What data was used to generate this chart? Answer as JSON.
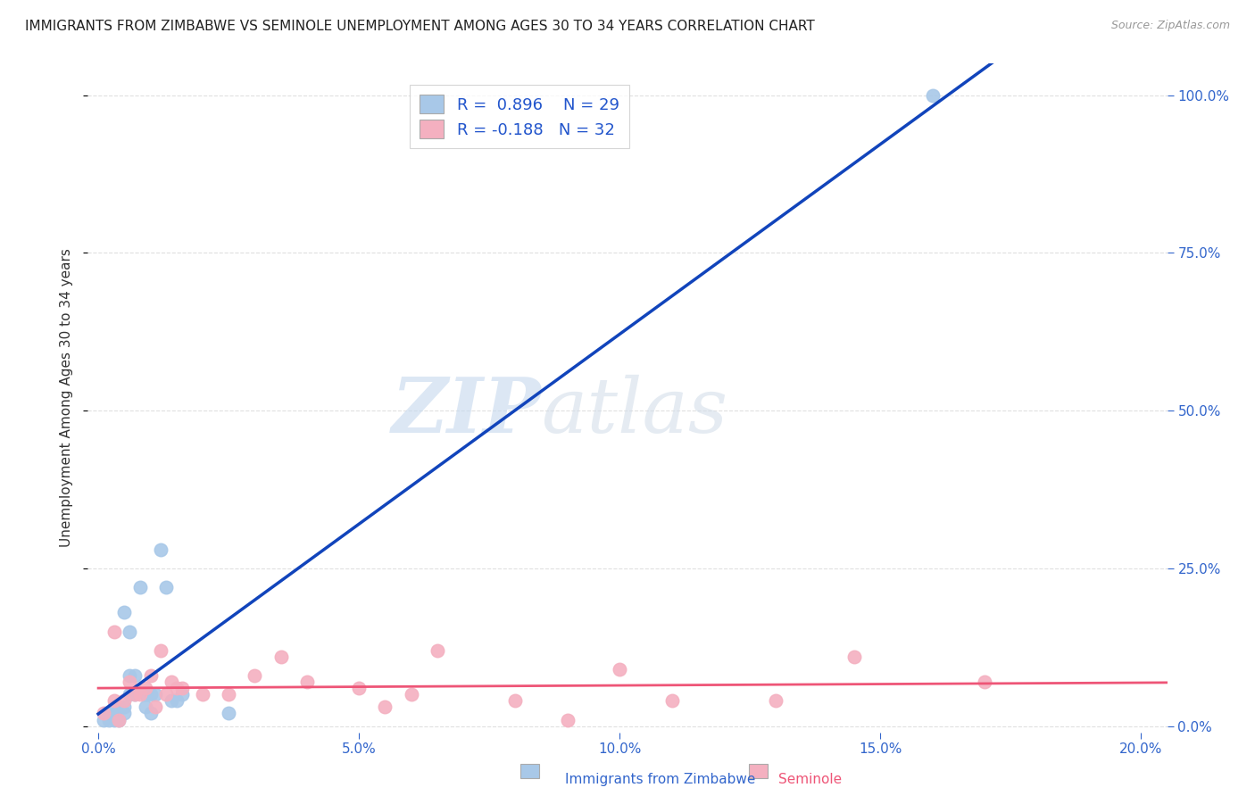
{
  "title": "IMMIGRANTS FROM ZIMBABWE VS SEMINOLE UNEMPLOYMENT AMONG AGES 30 TO 34 YEARS CORRELATION CHART",
  "source": "Source: ZipAtlas.com",
  "ylabel_label": "Unemployment Among Ages 30 to 34 years",
  "x_tick_labels": [
    "0.0%",
    "5.0%",
    "10.0%",
    "15.0%",
    "20.0%"
  ],
  "x_tick_vals": [
    0.0,
    0.05,
    0.1,
    0.15,
    0.2
  ],
  "y_tick_labels": [
    "0.0%",
    "25.0%",
    "50.0%",
    "75.0%",
    "100.0%"
  ],
  "y_tick_vals": [
    0.0,
    0.25,
    0.5,
    0.75,
    1.0
  ],
  "xlim": [
    -0.002,
    0.205
  ],
  "ylim": [
    -0.01,
    1.05
  ],
  "blue_R": "0.896",
  "blue_N": "29",
  "pink_R": "-0.188",
  "pink_N": "32",
  "blue_scatter_color": "#a8c8e8",
  "pink_scatter_color": "#f4b0c0",
  "blue_line_color": "#1144bb",
  "pink_line_color": "#ee5577",
  "legend_R_color": "#2255cc",
  "legend_N_color": "#2255cc",
  "blue_scatter_x": [
    0.001,
    0.002,
    0.002,
    0.003,
    0.003,
    0.003,
    0.004,
    0.004,
    0.005,
    0.005,
    0.005,
    0.006,
    0.006,
    0.006,
    0.007,
    0.007,
    0.008,
    0.009,
    0.009,
    0.01,
    0.01,
    0.011,
    0.012,
    0.013,
    0.014,
    0.015,
    0.016,
    0.025,
    0.16
  ],
  "blue_scatter_y": [
    0.01,
    0.01,
    0.02,
    0.01,
    0.02,
    0.03,
    0.01,
    0.03,
    0.02,
    0.03,
    0.18,
    0.05,
    0.08,
    0.15,
    0.05,
    0.08,
    0.22,
    0.03,
    0.05,
    0.02,
    0.05,
    0.05,
    0.28,
    0.22,
    0.04,
    0.04,
    0.05,
    0.02,
    1.0
  ],
  "pink_scatter_x": [
    0.001,
    0.003,
    0.004,
    0.005,
    0.006,
    0.007,
    0.008,
    0.009,
    0.01,
    0.011,
    0.012,
    0.013,
    0.014,
    0.015,
    0.016,
    0.02,
    0.025,
    0.03,
    0.035,
    0.04,
    0.05,
    0.055,
    0.06,
    0.065,
    0.08,
    0.09,
    0.1,
    0.11,
    0.13,
    0.145,
    0.17,
    0.003
  ],
  "pink_scatter_y": [
    0.02,
    0.04,
    0.01,
    0.04,
    0.07,
    0.05,
    0.05,
    0.06,
    0.08,
    0.03,
    0.12,
    0.05,
    0.07,
    0.06,
    0.06,
    0.05,
    0.05,
    0.08,
    0.11,
    0.07,
    0.06,
    0.03,
    0.05,
    0.12,
    0.04,
    0.01,
    0.09,
    0.04,
    0.04,
    0.11,
    0.07,
    0.15
  ],
  "watermark_zip": "ZIP",
  "watermark_atlas": "atlas",
  "background_color": "#ffffff",
  "grid_color": "#dddddd",
  "tick_color": "#3366cc",
  "ylabel_color": "#333333",
  "title_color": "#222222",
  "source_color": "#999999"
}
